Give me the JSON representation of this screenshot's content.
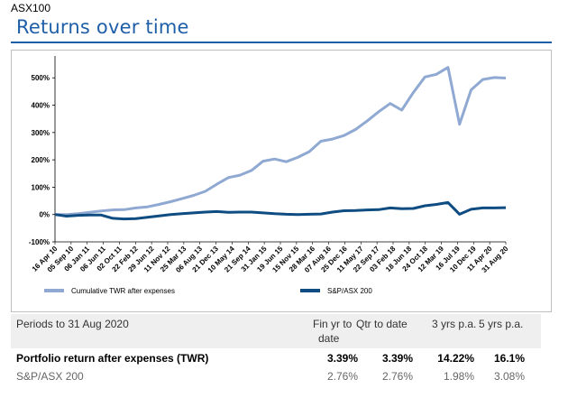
{
  "header": {
    "tag": "ASX100",
    "title": "Returns over time"
  },
  "chart_data": {
    "type": "line",
    "y_ticks": [
      "500%",
      "400%",
      "300%",
      "200%",
      "100%",
      "0%",
      "-100%"
    ],
    "y_tick_values": [
      500,
      400,
      300,
      200,
      100,
      0,
      -100
    ],
    "ylim": [
      -100,
      580
    ],
    "x_ticks": [
      "16 Apr 10",
      "05 Sep 10",
      "06 Jan 11",
      "06 Jun 11",
      "02 Oct 11",
      "22 Feb 12",
      "29 Jun 12",
      "11 Nov 12",
      "25 Mar 13",
      "06 Aug 13",
      "21 Dec 13",
      "10 May 14",
      "21 Sep 14",
      "31 Jan 15",
      "19 Jun 15",
      "15 Nov 15",
      "28 Mar 16",
      "07 Aug 16",
      "25 Dec 16",
      "11 May 17",
      "22 Sep 17",
      "03 Feb 18",
      "18 Jun 18",
      "24 Oct 18",
      "12 Mar 19",
      "16 Jul 19",
      "10 Dec 19",
      "11 Apr 20",
      "31 Aug 20"
    ],
    "legend_position": "bottom",
    "series": [
      {
        "name": "Cumulative TWR after expenses",
        "color": "#8fa9d2",
        "values": [
          0,
          0,
          3,
          8,
          13,
          17,
          18,
          24,
          28,
          37,
          47,
          58,
          70,
          85,
          111,
          135,
          144,
          161,
          195,
          203,
          193,
          209,
          230,
          268,
          276,
          289,
          311,
          342,
          376,
          406,
          382,
          446,
          503,
          513,
          538,
          330,
          456,
          494,
          501,
          499
        ]
      },
      {
        "name": "S&P/ASX 200",
        "color": "#0f4c81",
        "values": [
          0,
          -6,
          -3,
          -2,
          -2,
          -14,
          -16,
          -15,
          -10,
          -5,
          0,
          3,
          6,
          9,
          11,
          8,
          9,
          9,
          6,
          3,
          1,
          0,
          1,
          2,
          9,
          14,
          15,
          17,
          18,
          24,
          21,
          22,
          32,
          37,
          44,
          1,
          19,
          24,
          24,
          25
        ]
      }
    ]
  },
  "table": {
    "period_label": "Periods to 31 Aug 2020",
    "col_fy": "Fin yr to",
    "col_fy2": "date",
    "col_qtr": "Qtr to date",
    "col_3y": "3 yrs p.a.",
    "col_5y": "5 yrs p.a.",
    "rows": [
      {
        "label": "Portfolio return after expenses (TWR)",
        "fy": "3.39%",
        "qtr": "3.39%",
        "y3": "14.22%",
        "y5": "16.1%"
      },
      {
        "label": "S&P/ASX 200",
        "fy": "2.76%",
        "qtr": "2.76%",
        "y3": "1.98%",
        "y5": "3.08%"
      }
    ]
  }
}
